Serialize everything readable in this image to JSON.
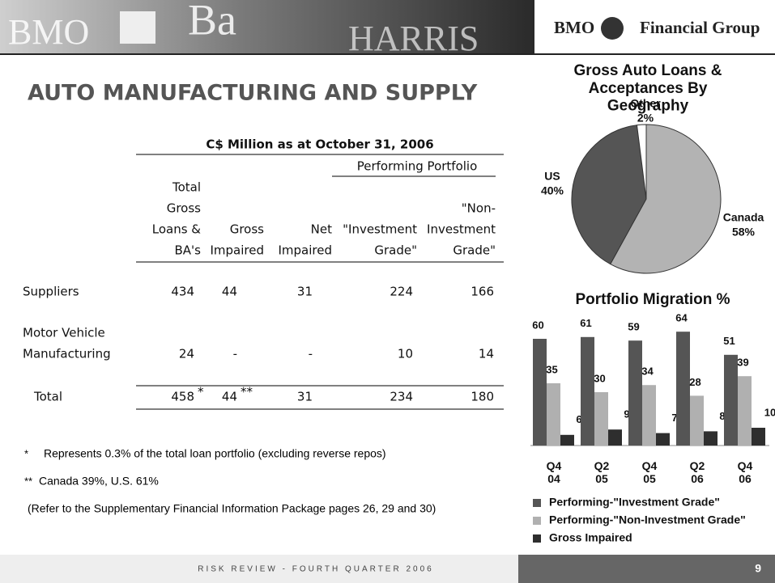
{
  "header": {
    "banner_texts": [
      "BMO",
      "Ba",
      "HARRIS"
    ],
    "logo": {
      "brand": "BMO",
      "name": "Financial Group"
    }
  },
  "title": "AUTO MANUFACTURING AND SUPPLY",
  "table": {
    "caption": "C$ Million as at October 31, 2006",
    "group_header": "Performing Portfolio",
    "columns": [
      [
        "Total",
        "Gross",
        "Loans &",
        "BA's"
      ],
      [
        "Gross",
        "Impaired"
      ],
      [
        "Net",
        "Impaired"
      ],
      [
        "\"Investment",
        "Grade\""
      ],
      [
        "\"Non-",
        "Investment",
        "Grade\""
      ]
    ],
    "rows": [
      {
        "label": [
          "Suppliers"
        ],
        "cells": [
          434,
          44,
          31,
          224,
          166
        ]
      },
      {
        "label": [
          "Motor Vehicle",
          "Manufacturing"
        ],
        "cells": [
          24,
          "-",
          "-",
          10,
          14
        ]
      },
      {
        "label": [
          "Total"
        ],
        "cells": [
          458,
          44,
          31,
          234,
          180
        ],
        "markers": [
          "*",
          "**"
        ]
      }
    ]
  },
  "notes": [
    {
      "marker": "*",
      "text": "Represents 0.3% of the total loan portfolio (excluding reverse repos)"
    },
    {
      "marker": "**",
      "text": "Canada 39%, U.S. 61%"
    },
    {
      "marker": "",
      "text": "(Refer to the Supplementary Financial Information Package pages 26, 29 and 30)"
    }
  ],
  "chart_data": [
    {
      "type": "pie",
      "title": "Gross Auto Loans & Acceptances By Geography",
      "categories": [
        "Canada",
        "US",
        "Other"
      ],
      "values": [
        58,
        40,
        2
      ],
      "value_labels": [
        "58%",
        "40%",
        "2%"
      ],
      "colors": [
        "#b3b3b3",
        "#555555",
        "#ffffff"
      ]
    },
    {
      "type": "bar",
      "title": "Portfolio Migration %",
      "categories": [
        "Q4 04",
        "Q2 05",
        "Q4 05",
        "Q2 06",
        "Q4 06"
      ],
      "ylim": [
        0,
        70
      ],
      "series": [
        {
          "name": "Performing-\"Investment Grade\"",
          "color": "#555555",
          "values": [
            60,
            61,
            59,
            64,
            51
          ]
        },
        {
          "name": "Performing-\"Non-Investment Grade\"",
          "color": "#b0b0b0",
          "values": [
            35,
            30,
            34,
            28,
            39
          ]
        },
        {
          "name": "Gross Impaired",
          "color": "#2e2e2e",
          "values": [
            6,
            9,
            7,
            8,
            10
          ]
        }
      ]
    }
  ],
  "footer": {
    "text": "RISK REVIEW - FOURTH QUARTER 2006",
    "page": "9"
  }
}
